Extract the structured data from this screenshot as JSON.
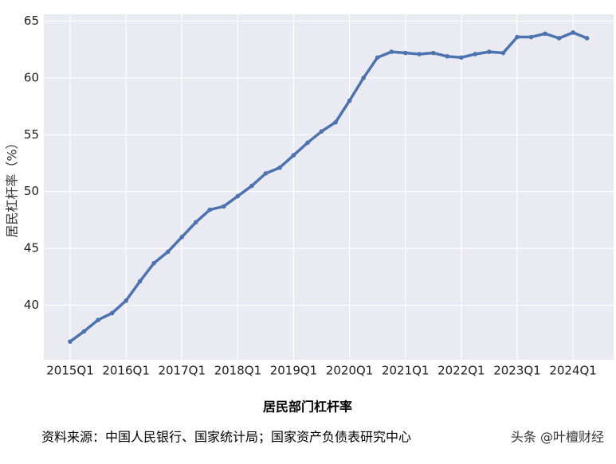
{
  "chart_data": {
    "type": "line",
    "y_label": "居民杠杆率（%）",
    "caption": "居民部门杠杆率",
    "source": "资料来源：中国人民银行、国家统计局；国家资产负债表研究中心",
    "watermark": "头条 @叶檀财经",
    "categories": [
      "2015Q1",
      null,
      null,
      null,
      "2016Q1",
      null,
      null,
      null,
      "2017Q1",
      null,
      null,
      null,
      "2018Q1",
      null,
      null,
      null,
      "2019Q1",
      null,
      null,
      null,
      "2020Q1",
      null,
      null,
      null,
      "2021Q1",
      null,
      null,
      null,
      "2022Q1",
      null,
      null,
      null,
      "2023Q1",
      null,
      null,
      null,
      "2024Q1",
      null
    ],
    "series": [
      {
        "name": "居民部门杠杆率",
        "color": "#4c72b0",
        "values": [
          36.8,
          37.7,
          38.7,
          39.3,
          40.4,
          42.1,
          43.7,
          44.7,
          46.0,
          47.3,
          48.4,
          48.7,
          49.6,
          50.5,
          51.6,
          52.1,
          53.2,
          54.3,
          55.3,
          56.1,
          58.0,
          60.0,
          61.8,
          62.3,
          62.2,
          62.1,
          62.2,
          61.9,
          61.8,
          62.1,
          62.3,
          62.2,
          63.6,
          63.6,
          63.9,
          63.5,
          64.0,
          63.5
        ]
      }
    ],
    "ylim": [
      35.2,
      65.6
    ],
    "yticks": [
      40,
      45,
      50,
      55,
      60,
      65
    ],
    "grid": true
  }
}
